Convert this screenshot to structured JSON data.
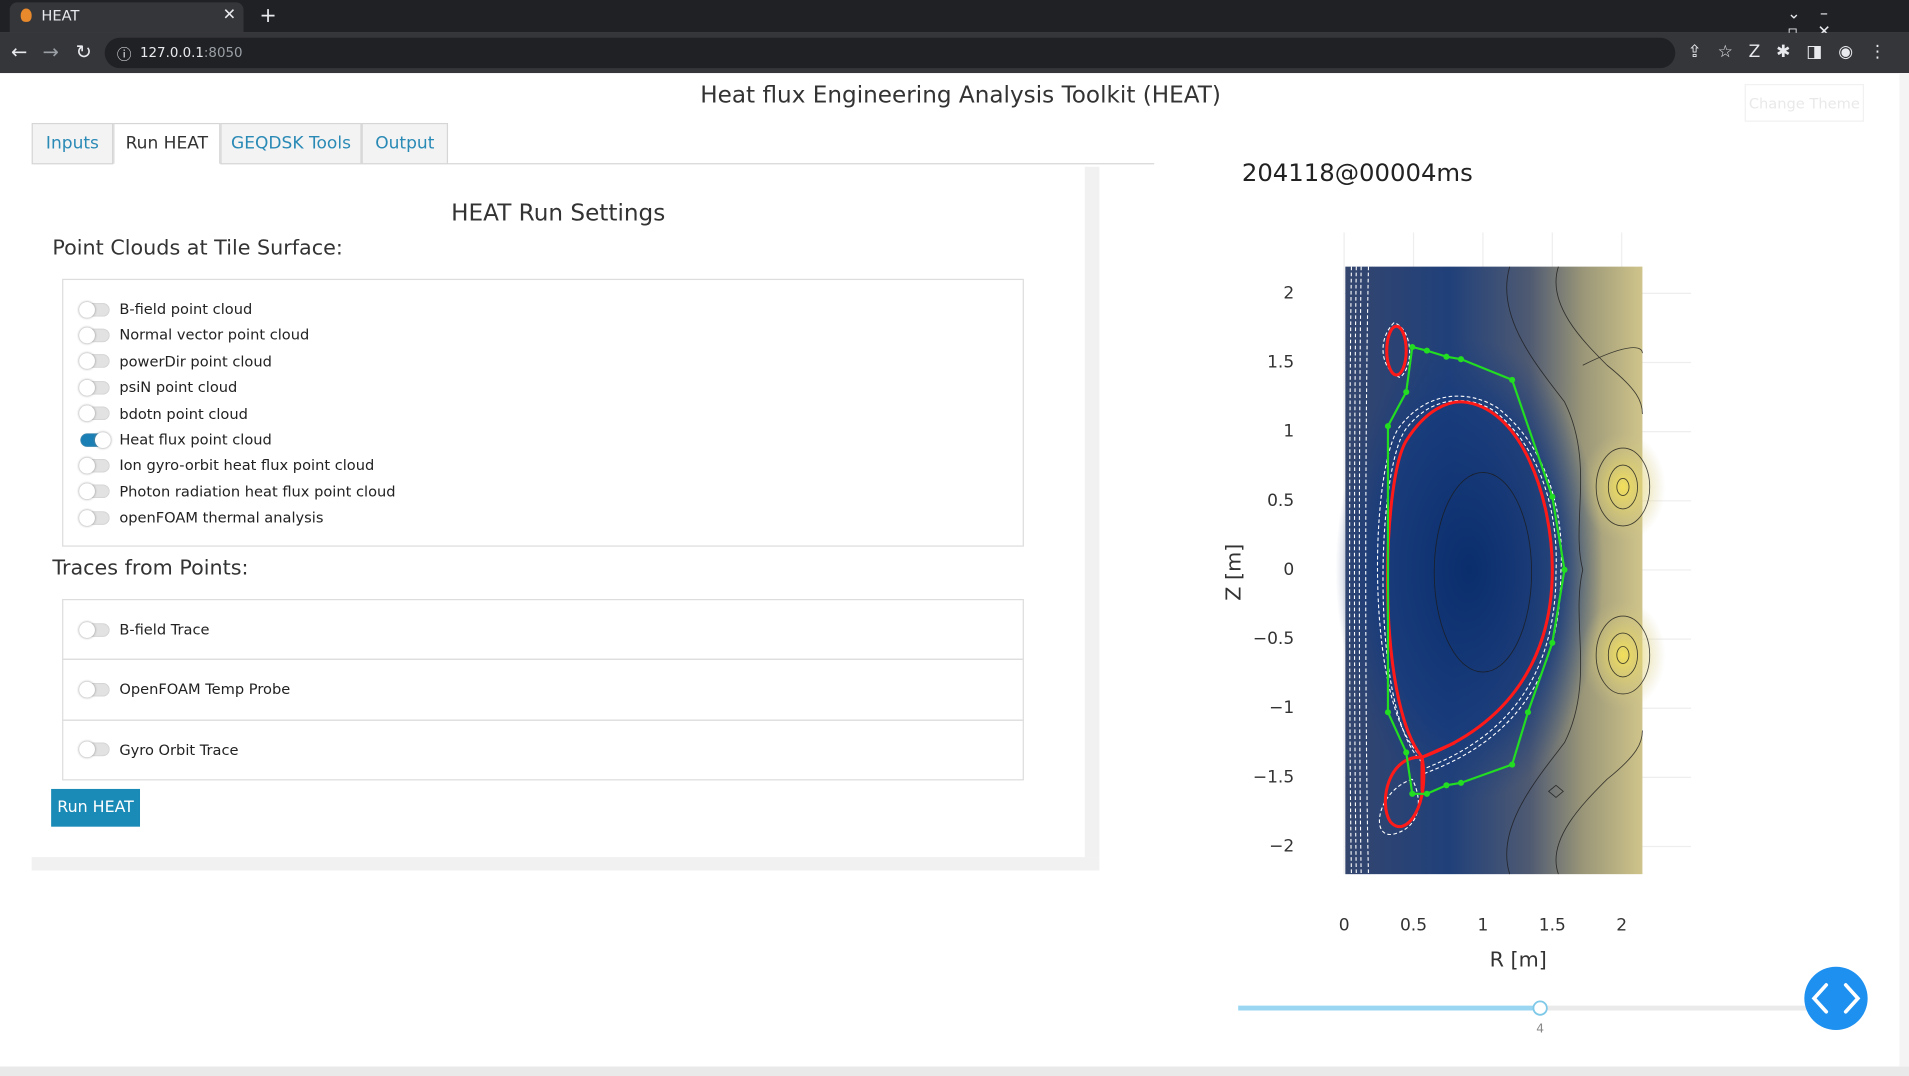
{
  "browser": {
    "tab_title": "HEAT",
    "url_host": "127.0.0.1",
    "url_port": ":8050"
  },
  "header": {
    "title": "Heat flux Engineering Analysis Toolkit (HEAT)",
    "theme_button": "Change Theme"
  },
  "tabs": [
    "Inputs",
    "Run HEAT",
    "GEQDSK Tools",
    "Output"
  ],
  "run_settings": {
    "title": "HEAT Run Settings",
    "point_clouds_label": "Point Clouds at Tile Surface:",
    "point_clouds": [
      {
        "label": "B-field point cloud",
        "on": false
      },
      {
        "label": "Normal vector point cloud",
        "on": false
      },
      {
        "label": "powerDir point cloud",
        "on": false
      },
      {
        "label": "psiN point cloud",
        "on": false
      },
      {
        "label": "bdotn point cloud",
        "on": false
      },
      {
        "label": "Heat flux point cloud",
        "on": true
      },
      {
        "label": "Ion gyro-orbit heat flux point cloud",
        "on": false
      },
      {
        "label": "Photon radiation heat flux point cloud",
        "on": false
      },
      {
        "label": "openFOAM thermal analysis",
        "on": false
      }
    ],
    "traces_label": "Traces from Points:",
    "traces": [
      {
        "label": "B-field Trace",
        "on": false
      },
      {
        "label": "OpenFOAM Temp Probe",
        "on": false
      },
      {
        "label": "Gyro Orbit Trace",
        "on": false
      }
    ],
    "run_button": "Run HEAT"
  },
  "plot": {
    "title": "204118@00004ms",
    "xlabel": "R [m]",
    "ylabel": "Z [m]",
    "xlim": [
      0,
      2.5
    ],
    "ylim": [
      -2.2,
      2.44
    ],
    "xticks": [
      0,
      0.5,
      1,
      1.5,
      2
    ],
    "yticks": [
      2,
      1.5,
      1,
      0.5,
      0,
      {
        "value": -0.5,
        "label": "−0.5"
      },
      {
        "value": -1,
        "label": "−1"
      },
      {
        "value": -1.5,
        "label": "−1.5"
      },
      {
        "value": -2,
        "label": "−2"
      }
    ]
  },
  "slider": {
    "value": 4
  }
}
